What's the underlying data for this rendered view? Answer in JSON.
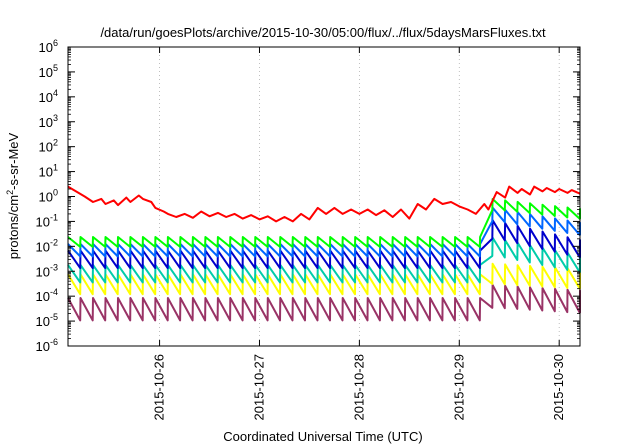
{
  "chart_data": {
    "type": "line",
    "title": "/data/run/goesPlots/archive/2015-10-30/05:00/flux/../flux/5daysMarsFluxes.txt",
    "xlabel": "Coordinated Universal Time (UTC)",
    "ylabel": {
      "prefix": "protons/cm",
      "sup": "2",
      "suffix": "-s-sr-MeV"
    },
    "y_scale": "log",
    "ylim": [
      1e-06,
      1000000.0
    ],
    "y_ticks": [
      {
        "value": 1e-06,
        "base": "10",
        "exp": "-6"
      },
      {
        "value": 1e-05,
        "base": "10",
        "exp": "-5"
      },
      {
        "value": 0.0001,
        "base": "10",
        "exp": "-4"
      },
      {
        "value": 0.001,
        "base": "10",
        "exp": "-3"
      },
      {
        "value": 0.01,
        "base": "10",
        "exp": "-2"
      },
      {
        "value": 0.1,
        "base": "10",
        "exp": "-1"
      },
      {
        "value": 1.0,
        "base": "10",
        "exp": "0"
      },
      {
        "value": 10.0,
        "base": "10",
        "exp": "1"
      },
      {
        "value": 100.0,
        "base": "10",
        "exp": "2"
      },
      {
        "value": 1000.0,
        "base": "10",
        "exp": "3"
      },
      {
        "value": 10000.0,
        "base": "10",
        "exp": "4"
      },
      {
        "value": 100000.0,
        "base": "10",
        "exp": "5"
      },
      {
        "value": 1000000.0,
        "base": "10",
        "exp": "6"
      }
    ],
    "xlim": [
      "2015-10-25T02:00",
      "2015-10-30T05:00"
    ],
    "x_ticks": [
      {
        "value": "2015-10-26T00:00",
        "label": "2015-10-26"
      },
      {
        "value": "2015-10-27T00:00",
        "label": "2015-10-27"
      },
      {
        "value": "2015-10-28T00:00",
        "label": "2015-10-28"
      },
      {
        "value": "2015-10-29T00:00",
        "label": "2015-10-29"
      },
      {
        "value": "2015-10-30T00:00",
        "label": "2015-10-30"
      }
    ],
    "grid": true,
    "legend": "none",
    "series": [
      {
        "color": "#ff0000",
        "x": [
          "2015-10-25T02:00",
          "2015-10-25T06:00",
          "2015-10-25T08:00",
          "2015-10-25T10:00",
          "2015-10-25T11:00",
          "2015-10-25T13:00",
          "2015-10-25T14:00",
          "2015-10-25T16:00",
          "2015-10-25T17:00",
          "2015-10-25T19:00",
          "2015-10-25T20:00",
          "2015-10-25T22:00",
          "2015-10-25T23:00",
          "2015-10-26T01:00",
          "2015-10-26T02:00",
          "2015-10-26T04:00",
          "2015-10-26T06:00",
          "2015-10-26T08:00",
          "2015-10-26T10:00",
          "2015-10-26T12:00",
          "2015-10-26T14:00",
          "2015-10-26T16:00",
          "2015-10-26T18:00",
          "2015-10-26T20:00",
          "2015-10-26T22:00",
          "2015-10-27T00:00",
          "2015-10-27T02:00",
          "2015-10-27T04:00",
          "2015-10-27T06:00",
          "2015-10-27T08:00",
          "2015-10-27T10:00",
          "2015-10-27T12:00",
          "2015-10-27T14:00",
          "2015-10-27T16:00",
          "2015-10-27T18:00",
          "2015-10-27T20:00",
          "2015-10-27T22:00",
          "2015-10-28T00:00",
          "2015-10-28T02:00",
          "2015-10-28T04:00",
          "2015-10-28T06:00",
          "2015-10-28T08:00",
          "2015-10-28T10:00",
          "2015-10-28T12:00",
          "2015-10-28T14:00",
          "2015-10-28T16:00",
          "2015-10-28T18:00",
          "2015-10-28T20:00",
          "2015-10-28T22:00",
          "2015-10-29T00:00",
          "2015-10-29T02:00",
          "2015-10-29T04:00",
          "2015-10-29T06:00",
          "2015-10-29T07:00",
          "2015-10-29T09:00",
          "2015-10-29T11:00",
          "2015-10-29T12:00",
          "2015-10-29T14:00",
          "2015-10-29T15:00",
          "2015-10-29T17:00",
          "2015-10-29T18:00",
          "2015-10-29T20:00",
          "2015-10-29T21:00",
          "2015-10-29T23:00",
          "2015-10-30T00:00",
          "2015-10-30T02:00",
          "2015-10-30T03:00",
          "2015-10-30T05:00"
        ],
        "y": [
          2.5,
          1.0,
          0.6,
          0.8,
          0.5,
          0.7,
          0.45,
          0.9,
          0.6,
          1.1,
          0.8,
          0.6,
          0.35,
          0.25,
          0.2,
          0.15,
          0.2,
          0.14,
          0.25,
          0.16,
          0.22,
          0.15,
          0.2,
          0.13,
          0.18,
          0.12,
          0.16,
          0.1,
          0.15,
          0.1,
          0.2,
          0.12,
          0.35,
          0.2,
          0.35,
          0.2,
          0.3,
          0.2,
          0.3,
          0.18,
          0.28,
          0.15,
          0.3,
          0.13,
          0.5,
          0.3,
          0.8,
          0.5,
          0.6,
          0.4,
          0.3,
          0.2,
          0.5,
          0.3,
          1.5,
          0.9,
          2.5,
          1.4,
          2.0,
          1.2,
          2.5,
          1.6,
          2.2,
          1.5,
          2.0,
          1.4,
          1.8,
          1.3
        ]
      },
      {
        "color": "#00ff00",
        "x": [
          "2015-10-25T02:00",
          "2015-10-29T06:00",
          "2015-10-29T08:00",
          "2015-10-30T05:00"
        ],
        "y": [
          0.015,
          0.015,
          0.5,
          0.2
        ],
        "sawtooth": {
          "period_hours": 3,
          "amplitude": 0.4
        }
      },
      {
        "color": "#0066ff",
        "x": [
          "2015-10-25T02:00",
          "2015-10-29T06:00",
          "2015-10-29T08:00",
          "2015-10-30T05:00"
        ],
        "y": [
          0.007,
          0.007,
          0.2,
          0.05
        ],
        "sawtooth": {
          "period_hours": 3,
          "amplitude": 0.5
        }
      },
      {
        "color": "#0000cc",
        "x": [
          "2015-10-25T02:00",
          "2015-10-29T06:00",
          "2015-10-29T08:00",
          "2015-10-30T05:00"
        ],
        "y": [
          0.003,
          0.003,
          0.05,
          0.008
        ],
        "sawtooth": {
          "period_hours": 3,
          "amplitude": 0.7
        }
      },
      {
        "color": "#00ccaa",
        "x": [
          "2015-10-25T02:00",
          "2015-10-29T06:00",
          "2015-10-29T08:00",
          "2015-10-30T05:00"
        ],
        "y": [
          0.0008,
          0.0008,
          0.01,
          0.002
        ],
        "sawtooth": {
          "period_hours": 3,
          "amplitude": 0.7
        }
      },
      {
        "color": "#ffff00",
        "x": [
          "2015-10-25T02:00",
          "2015-10-29T06:00",
          "2015-10-29T08:00",
          "2015-10-30T05:00"
        ],
        "y": [
          0.0003,
          0.0003,
          0.0008,
          0.0005
        ],
        "sawtooth": {
          "period_hours": 3,
          "amplitude": 0.8
        }
      },
      {
        "color": "#993366",
        "x": [
          "2015-10-25T02:00",
          "2015-10-29T06:00",
          "2015-10-29T08:00",
          "2015-10-30T05:00"
        ],
        "y": [
          3e-05,
          3e-05,
          0.0001,
          6e-05
        ],
        "sawtooth": {
          "period_hours": 3,
          "amplitude": 0.9
        }
      }
    ]
  }
}
